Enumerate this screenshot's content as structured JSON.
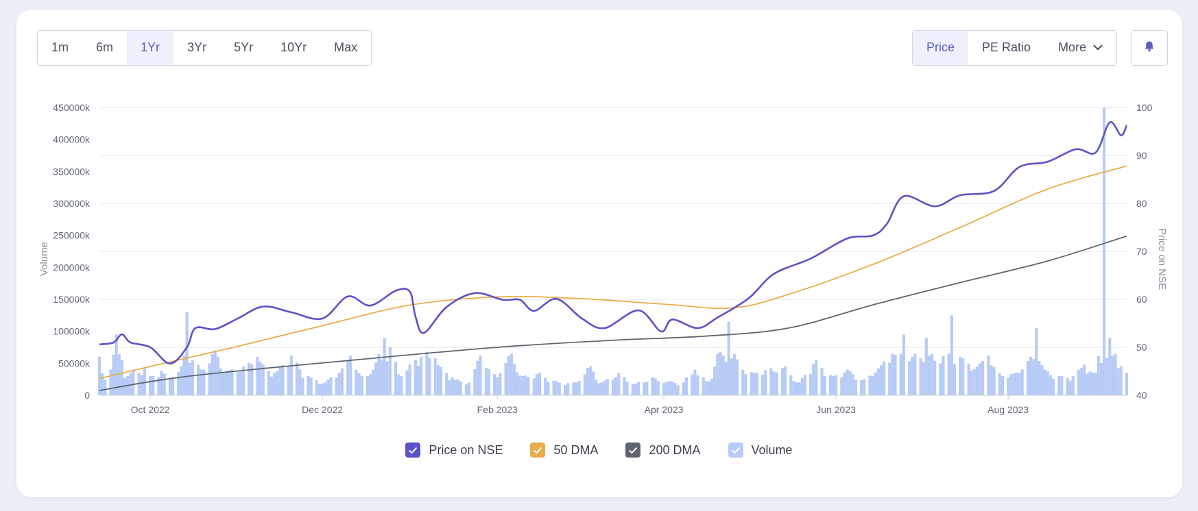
{
  "range_buttons": [
    "1m",
    "6m",
    "1Yr",
    "3Yr",
    "5Yr",
    "10Yr",
    "Max"
  ],
  "active_range": "1Yr",
  "metric_buttons": {
    "price": "Price",
    "pe": "PE Ratio",
    "more": "More"
  },
  "legend": [
    {
      "label": "Price on NSE",
      "color": "#5b52c8"
    },
    {
      "label": "50 DMA",
      "color": "#e9ac4a"
    },
    {
      "label": "200 DMA",
      "color": "#5f656f"
    },
    {
      "label": "Volume",
      "color": "#b7cbf6"
    }
  ],
  "chart_data": {
    "type": "line",
    "x_range": [
      "2022-09-13",
      "2023-09-12"
    ],
    "x_ticks": [
      "Oct 2022",
      "Dec 2022",
      "Feb 2023",
      "Apr 2023",
      "Jun 2023",
      "Aug 2023"
    ],
    "y_left": {
      "label": "Volume",
      "range": [
        0,
        450000
      ],
      "ticks": [
        "0",
        "50000k",
        "100000k",
        "150000k",
        "200000k",
        "250000k",
        "300000k",
        "350000k",
        "400000k",
        "450000k"
      ]
    },
    "y_right": {
      "label": "Price on NSE",
      "range": [
        40,
        100
      ],
      "ticks": [
        "40",
        "50",
        "60",
        "70",
        "80",
        "90",
        "100"
      ]
    },
    "grid": true,
    "legend_position": "bottom",
    "series": [
      {
        "name": "Price on NSE",
        "axis": "right",
        "points": [
          [
            "2022-09-13",
            50.6
          ],
          [
            "2022-09-18",
            51.0
          ],
          [
            "2022-09-21",
            52.7
          ],
          [
            "2022-09-24",
            51.0
          ],
          [
            "2022-10-01",
            50.0
          ],
          [
            "2022-10-08",
            46.6
          ],
          [
            "2022-10-14",
            50.0
          ],
          [
            "2022-10-17",
            54.0
          ],
          [
            "2022-10-24",
            53.8
          ],
          [
            "2022-11-01",
            56.0
          ],
          [
            "2022-11-10",
            58.5
          ],
          [
            "2022-11-20",
            57.3
          ],
          [
            "2022-12-01",
            56.0
          ],
          [
            "2022-12-10",
            60.6
          ],
          [
            "2022-12-18",
            58.7
          ],
          [
            "2022-12-27",
            61.8
          ],
          [
            "2023-01-01",
            61.6
          ],
          [
            "2023-01-03",
            56.4
          ],
          [
            "2023-01-06",
            53.0
          ],
          [
            "2023-01-14",
            58.4
          ],
          [
            "2023-01-24",
            61.3
          ],
          [
            "2023-02-03",
            59.9
          ],
          [
            "2023-02-09",
            59.9
          ],
          [
            "2023-02-14",
            57.6
          ],
          [
            "2023-02-22",
            60.1
          ],
          [
            "2023-03-03",
            56.0
          ],
          [
            "2023-03-11",
            54.0
          ],
          [
            "2023-03-23",
            57.7
          ],
          [
            "2023-03-31",
            53.3
          ],
          [
            "2023-04-04",
            55.8
          ],
          [
            "2023-04-13",
            54.0
          ],
          [
            "2023-04-20",
            56.2
          ],
          [
            "2023-05-01",
            60.2
          ],
          [
            "2023-05-10",
            65.3
          ],
          [
            "2023-05-23",
            68.5
          ],
          [
            "2023-06-05",
            72.7
          ],
          [
            "2023-06-14",
            73.3
          ],
          [
            "2023-06-19",
            75.7
          ],
          [
            "2023-06-25",
            81.5
          ],
          [
            "2023-07-06",
            79.4
          ],
          [
            "2023-07-15",
            81.7
          ],
          [
            "2023-07-27",
            82.6
          ],
          [
            "2023-08-05",
            87.6
          ],
          [
            "2023-08-15",
            88.7
          ],
          [
            "2023-08-25",
            91.3
          ],
          [
            "2023-09-01",
            90.6
          ],
          [
            "2023-09-06",
            96.9
          ],
          [
            "2023-09-10",
            94.2
          ],
          [
            "2023-09-12",
            96.3
          ]
        ]
      },
      {
        "name": "50 DMA",
        "axis": "right",
        "points": [
          [
            "2022-09-13",
            43.5
          ],
          [
            "2022-10-01",
            46.0
          ],
          [
            "2022-11-01",
            50.2
          ],
          [
            "2022-12-01",
            54.5
          ],
          [
            "2023-01-01",
            58.8
          ],
          [
            "2023-02-01",
            60.5
          ],
          [
            "2023-03-01",
            60.2
          ],
          [
            "2023-04-01",
            59.0
          ],
          [
            "2023-04-25",
            58.2
          ],
          [
            "2023-05-15",
            61.0
          ],
          [
            "2023-06-15",
            67.5
          ],
          [
            "2023-07-15",
            75.0
          ],
          [
            "2023-08-15",
            83.0
          ],
          [
            "2023-09-12",
            87.8
          ]
        ]
      },
      {
        "name": "200 DMA",
        "axis": "right",
        "points": [
          [
            "2022-09-13",
            41.0
          ],
          [
            "2022-10-15",
            44.0
          ],
          [
            "2022-12-15",
            47.5
          ],
          [
            "2023-02-01",
            50.0
          ],
          [
            "2023-03-15",
            51.5
          ],
          [
            "2023-04-15",
            52.3
          ],
          [
            "2023-05-15",
            54.0
          ],
          [
            "2023-06-15",
            59.0
          ],
          [
            "2023-07-15",
            63.5
          ],
          [
            "2023-08-15",
            68.0
          ],
          [
            "2023-09-12",
            73.2
          ]
        ]
      },
      {
        "name": "Volume",
        "axis": "left",
        "type": "bar",
        "points": [
          [
            "2022-09-13",
            60000
          ],
          [
            "2022-09-15",
            25000
          ],
          [
            "2022-09-17",
            40000
          ],
          [
            "2022-09-19",
            95000
          ],
          [
            "2022-09-21",
            55000
          ],
          [
            "2022-09-23",
            30000
          ],
          [
            "2022-09-25",
            40000
          ],
          [
            "2022-09-27",
            35000
          ],
          [
            "2022-09-29",
            42000
          ],
          [
            "2022-10-01",
            30000
          ],
          [
            "2022-10-05",
            38000
          ],
          [
            "2022-10-09",
            28000
          ],
          [
            "2022-10-12",
            45000
          ],
          [
            "2022-10-14",
            130000
          ],
          [
            "2022-10-16",
            55000
          ],
          [
            "2022-10-20",
            40000
          ],
          [
            "2022-10-24",
            70000
          ],
          [
            "2022-10-28",
            38000
          ],
          [
            "2022-11-03",
            45000
          ],
          [
            "2022-11-08",
            60000
          ],
          [
            "2022-11-14",
            35000
          ],
          [
            "2022-11-20",
            62000
          ],
          [
            "2022-11-26",
            30000
          ],
          [
            "2022-12-02",
            20000
          ],
          [
            "2022-12-08",
            42000
          ],
          [
            "2022-12-11",
            62000
          ],
          [
            "2022-12-15",
            30000
          ],
          [
            "2022-12-19",
            40000
          ],
          [
            "2022-12-23",
            90000
          ],
          [
            "2022-12-25",
            75000
          ],
          [
            "2022-12-29",
            30000
          ],
          [
            "2023-01-03",
            55000
          ],
          [
            "2023-01-07",
            68000
          ],
          [
            "2023-01-10",
            58000
          ],
          [
            "2023-01-16",
            28000
          ],
          [
            "2023-01-22",
            20000
          ],
          [
            "2023-01-26",
            62000
          ],
          [
            "2023-02-01",
            28000
          ],
          [
            "2023-02-06",
            65000
          ],
          [
            "2023-02-10",
            30000
          ],
          [
            "2023-02-16",
            35000
          ],
          [
            "2023-02-22",
            22000
          ],
          [
            "2023-03-01",
            20000
          ],
          [
            "2023-03-06",
            45000
          ],
          [
            "2023-03-10",
            20000
          ],
          [
            "2023-03-16",
            35000
          ],
          [
            "2023-03-22",
            18000
          ],
          [
            "2023-03-28",
            28000
          ],
          [
            "2023-04-03",
            22000
          ],
          [
            "2023-04-08",
            20000
          ],
          [
            "2023-04-12",
            40000
          ],
          [
            "2023-04-17",
            22000
          ],
          [
            "2023-04-21",
            68000
          ],
          [
            "2023-04-24",
            115000
          ],
          [
            "2023-04-29",
            40000
          ],
          [
            "2023-05-04",
            35000
          ],
          [
            "2023-05-09",
            42000
          ],
          [
            "2023-05-14",
            45000
          ],
          [
            "2023-05-19",
            20000
          ],
          [
            "2023-05-25",
            55000
          ],
          [
            "2023-05-31",
            30000
          ],
          [
            "2023-06-05",
            40000
          ],
          [
            "2023-06-11",
            25000
          ],
          [
            "2023-06-16",
            42000
          ],
          [
            "2023-06-21",
            65000
          ],
          [
            "2023-06-25",
            95000
          ],
          [
            "2023-06-28",
            60000
          ],
          [
            "2023-07-03",
            90000
          ],
          [
            "2023-07-08",
            50000
          ],
          [
            "2023-07-12",
            125000
          ],
          [
            "2023-07-16",
            58000
          ],
          [
            "2023-07-21",
            45000
          ],
          [
            "2023-07-25",
            62000
          ],
          [
            "2023-07-30",
            30000
          ],
          [
            "2023-08-04",
            35000
          ],
          [
            "2023-08-09",
            60000
          ],
          [
            "2023-08-11",
            105000
          ],
          [
            "2023-08-14",
            40000
          ],
          [
            "2023-08-19",
            30000
          ],
          [
            "2023-08-24",
            30000
          ],
          [
            "2023-08-28",
            48000
          ],
          [
            "2023-09-01",
            35000
          ],
          [
            "2023-09-04",
            450000
          ],
          [
            "2023-09-06",
            90000
          ],
          [
            "2023-09-08",
            65000
          ],
          [
            "2023-09-10",
            45000
          ],
          [
            "2023-09-12",
            35000
          ]
        ]
      }
    ]
  }
}
